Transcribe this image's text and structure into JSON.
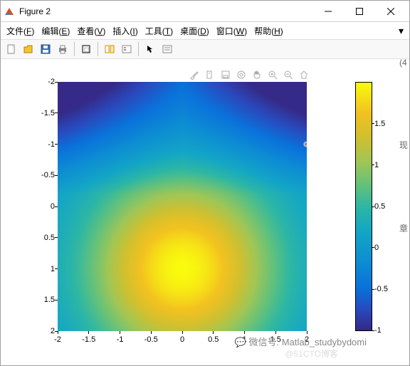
{
  "window": {
    "title": "Figure 2",
    "icon_color_top": "#d85028",
    "icon_color_bottom": "#4a7ab8"
  },
  "menu": {
    "file": "文件(F)",
    "edit": "编辑(E)",
    "view": "查看(V)",
    "insert": "插入(I)",
    "tools": "工具(T)",
    "desktop": "桌面(D)",
    "window": "窗口(W)",
    "help": "帮助(H)"
  },
  "toolbar": {
    "new": "new-file",
    "open": "open-folder",
    "save": "save",
    "print": "print",
    "datacursor": "data-cursor",
    "colorbar": "colorbar",
    "legend": "legend",
    "arrow": "arrow",
    "edit_plot": "edit-plot"
  },
  "plot_tools": [
    "brush",
    "note",
    "rotate",
    "datacursor",
    "pan",
    "zoom-in",
    "zoom-out",
    "home"
  ],
  "heatmap_chart": {
    "type": "heatmap",
    "xlim": [
      -2,
      2
    ],
    "ylim": [
      -2,
      2
    ],
    "x_ticks": [
      -2,
      -1.5,
      -1,
      -0.5,
      0,
      0.5,
      1,
      1.5,
      2
    ],
    "y_ticks": [
      -2,
      -1.5,
      -1,
      -0.5,
      0,
      0.5,
      1,
      1.5,
      2
    ],
    "tick_fontsize": 11,
    "y_axis_reversed": true,
    "background_color": "#ffffff",
    "colormap_name": "parula",
    "colormap": [
      {
        "stop": 0.0,
        "hex": "#352a87"
      },
      {
        "stop": 0.08,
        "hex": "#2a49bd"
      },
      {
        "stop": 0.17,
        "hex": "#0a72db"
      },
      {
        "stop": 0.28,
        "hex": "#0d8fd2"
      },
      {
        "stop": 0.4,
        "hex": "#14a6c6"
      },
      {
        "stop": 0.5,
        "hex": "#2eb7a4"
      },
      {
        "stop": 0.58,
        "hex": "#60c17e"
      },
      {
        "stop": 0.68,
        "hex": "#a0c656"
      },
      {
        "stop": 0.78,
        "hex": "#d1c02f"
      },
      {
        "stop": 0.88,
        "hex": "#f3c220"
      },
      {
        "stop": 1.0,
        "hex": "#f9fb0e"
      }
    ],
    "field_center": [
      0,
      1
    ],
    "field_radial_peak": 2.0,
    "field_corner_min": -1.0,
    "colorbar": {
      "min": -1,
      "max": 2,
      "ticks": [
        -1,
        -0.5,
        0,
        0.5,
        1,
        1.5
      ]
    }
  },
  "watermark": {
    "line1": "微信号: Matlab_studybydomi",
    "line2": "@51CTO博客",
    "wechat_icon": "💬"
  },
  "side_labels": [
    "(4",
    "现",
    "章"
  ]
}
